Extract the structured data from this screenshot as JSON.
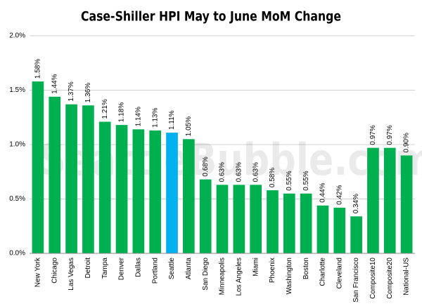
{
  "chart_data": {
    "type": "bar",
    "title": "Case-Shiller HPI May to June MoM Change",
    "watermark": "SeattleBubble.com",
    "categories": [
      "New York",
      "Chicago",
      "Las Vegas",
      "Detroit",
      "Tampa",
      "Denver",
      "Dallas",
      "Portland",
      "Seattle",
      "Atlanta",
      "San Diego",
      "Minneapolis",
      "Los Angeles",
      "Miami",
      "Phoenix",
      "Washington",
      "Boston",
      "Charlotte",
      "Cleveland",
      "San Francisco",
      "Composite10",
      "Composite20",
      "National-US"
    ],
    "values": [
      1.58,
      1.44,
      1.37,
      1.36,
      1.21,
      1.18,
      1.14,
      1.13,
      1.11,
      1.05,
      0.68,
      0.63,
      0.63,
      0.63,
      0.58,
      0.55,
      0.55,
      0.44,
      0.42,
      0.34,
      0.97,
      0.97,
      0.9
    ],
    "value_labels": [
      "1.58%",
      "1.44%",
      "1.37%",
      "1.36%",
      "1.21%",
      "1.18%",
      "1.14%",
      "1.13%",
      "1.11%",
      "1.05%",
      "0.68%",
      "0.63%",
      "0.63%",
      "0.63%",
      "0.58%",
      "0.55%",
      "0.55%",
      "0.44%",
      "0.42%",
      "0.34%",
      "0.97%",
      "0.97%",
      "0.90%"
    ],
    "colors": [
      "#00b050",
      "#00b050",
      "#00b050",
      "#00b050",
      "#00b050",
      "#00b050",
      "#00b050",
      "#00b050",
      "#00b0f0",
      "#00b050",
      "#00b050",
      "#00b050",
      "#00b050",
      "#00b050",
      "#00b050",
      "#00b050",
      "#00b050",
      "#00b050",
      "#00b050",
      "#00b050",
      "#00b050",
      "#00b050",
      "#00b050"
    ],
    "ylim": [
      0,
      2
    ],
    "yticks": [
      {
        "value": 0,
        "label": "0.0%"
      },
      {
        "value": 0.5,
        "label": "0.5%"
      },
      {
        "value": 1,
        "label": "1.0%"
      },
      {
        "value": 1.5,
        "label": "1.5%"
      },
      {
        "value": 2,
        "label": "2.0%"
      }
    ],
    "grid": true
  }
}
